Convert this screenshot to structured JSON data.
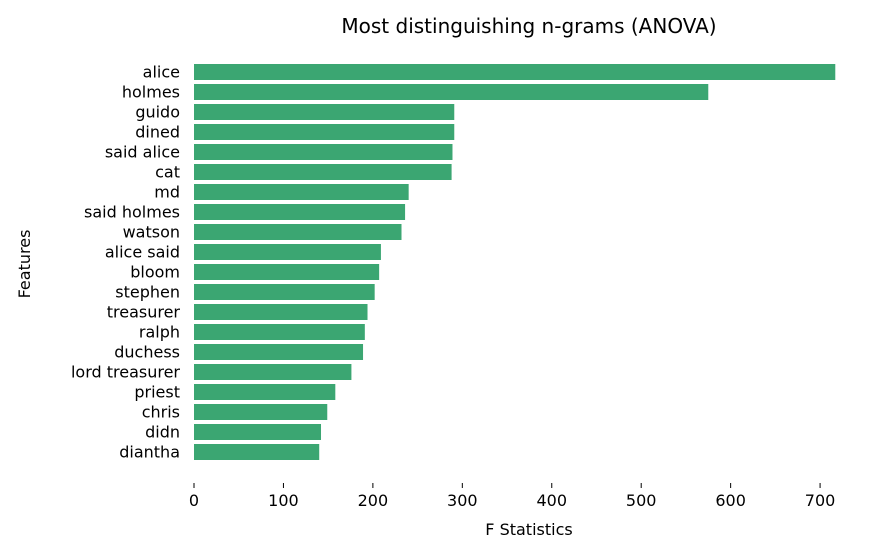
{
  "chart_data": {
    "type": "bar",
    "orientation": "horizontal",
    "title": "Most distinguishing n-grams (ANOVA)",
    "xlabel": "F Statistics",
    "ylabel": "Features",
    "categories": [
      "alice",
      "holmes",
      "guido",
      "dined",
      "said alice",
      "cat",
      "md",
      "said holmes",
      "watson",
      "alice said",
      "bloom",
      "stephen",
      "treasurer",
      "ralph",
      "duchess",
      "lord treasurer",
      "priest",
      "chris",
      "didn",
      "diantha"
    ],
    "values": [
      717,
      575,
      291,
      291,
      289,
      288,
      240,
      236,
      232,
      209,
      207,
      202,
      194,
      191,
      189,
      176,
      158,
      149,
      142,
      140
    ],
    "xticks": [
      "0",
      "100",
      "200",
      "300",
      "400",
      "500",
      "600",
      "700"
    ],
    "xlim": [
      0,
      717
    ],
    "grid": false,
    "legend": "none",
    "bar_color": "#3ba672"
  }
}
